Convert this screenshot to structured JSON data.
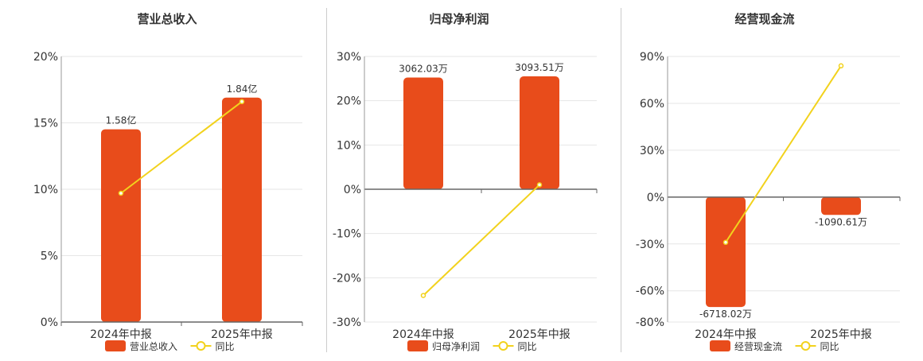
{
  "chart_data": [
    {
      "type": "bar",
      "title": "营业总收入",
      "categories": [
        "2024年中报",
        "2025年中报"
      ],
      "bar_series": {
        "name": "营业总收入",
        "values": [
          1.58,
          1.84
        ],
        "labels": [
          "1.58亿",
          "1.84亿"
        ],
        "unit": "亿"
      },
      "line_series": {
        "name": "同比",
        "values": [
          9.7,
          16.6
        ]
      },
      "y_axis": {
        "ticks": [
          0,
          5,
          10,
          15,
          20
        ],
        "tick_labels": [
          "0%",
          "5%",
          "10%",
          "15%",
          "20%"
        ],
        "ylim": [
          0,
          20
        ]
      },
      "grid": true,
      "legend": "bottom"
    },
    {
      "type": "bar",
      "title": "归母净利润",
      "categories": [
        "2024年中报",
        "2025年中报"
      ],
      "bar_series": {
        "name": "归母净利润",
        "values": [
          3062.03,
          3093.51
        ],
        "labels": [
          "3062.03万",
          "3093.51万"
        ],
        "unit": "万"
      },
      "line_series": {
        "name": "同比",
        "values": [
          -24.0,
          1.0
        ]
      },
      "y_axis": {
        "ticks": [
          -30,
          -20,
          -10,
          0,
          10,
          20,
          30
        ],
        "tick_labels": [
          "-30%",
          "-20%",
          "-10%",
          "0%",
          "10%",
          "20%",
          "30%"
        ],
        "ylim": [
          -30,
          30
        ]
      },
      "grid": true,
      "legend": "bottom"
    },
    {
      "type": "bar",
      "title": "经营现金流",
      "categories": [
        "2024年中报",
        "2025年中报"
      ],
      "bar_series": {
        "name": "经营现金流",
        "values": [
          -6718.02,
          -1090.61
        ],
        "labels": [
          "-6718.02万",
          "-1090.61万"
        ],
        "unit": "万"
      },
      "line_series": {
        "name": "同比",
        "values": [
          -29.0,
          84.0
        ]
      },
      "y_axis": {
        "ticks": [
          -80,
          -60,
          -30,
          0,
          30,
          60,
          90
        ],
        "tick_labels": [
          "-80%",
          "-60%",
          "-30%",
          "0%",
          "30%",
          "60%",
          "90%"
        ],
        "ylim": [
          -80,
          90
        ]
      },
      "grid": true,
      "legend": "bottom"
    }
  ],
  "colors": {
    "bar": "#e84c1b",
    "line": "#f2d21d",
    "axis": "#666666",
    "grid": "#e6e6e6",
    "separator": "#cccccc"
  }
}
